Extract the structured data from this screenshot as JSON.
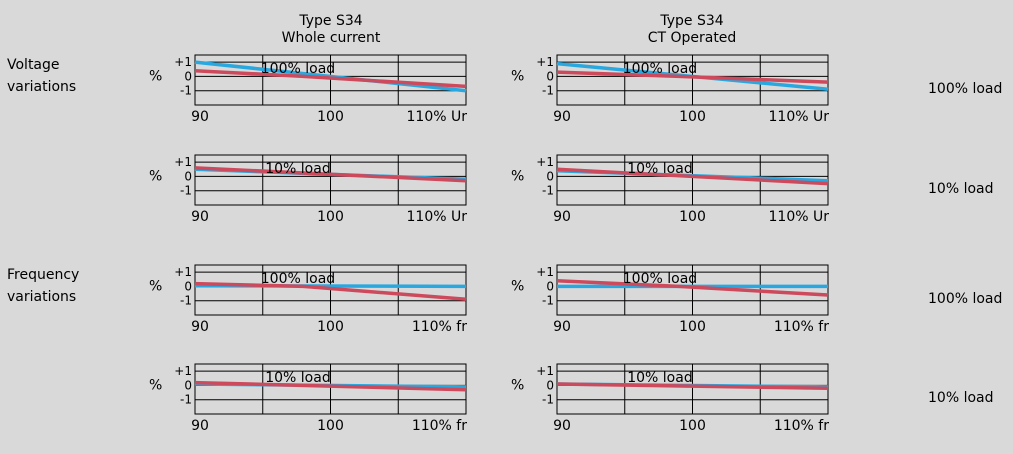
{
  "columns": [
    {
      "title_line1": "Type S34",
      "title_line2": "Whole current"
    },
    {
      "title_line1": "Type S34",
      "title_line2": "CT Operated"
    }
  ],
  "row_labels": [
    {
      "line1": "Voltage",
      "line2": "variations"
    },
    {
      "line1": "Frequency",
      "line2": "variations"
    }
  ],
  "right_labels": [
    "100% load",
    "10% load",
    "100% load",
    "10% load"
  ],
  "colors": {
    "background": "#d9d9d9",
    "cyan_series": "#29a8e0",
    "red_series": "#cc4a5c",
    "grid": "#000000"
  },
  "chart_data": [
    {
      "type": "line",
      "panel": "whole-current-voltage-100",
      "overlay_label": "100% load",
      "ylabel": "%",
      "x_ticks": [
        "90",
        "100",
        "110% Ur"
      ],
      "y_ticks": [
        "+1",
        "0",
        "-1"
      ],
      "xlim": [
        90,
        110
      ],
      "ylim": [
        -2,
        1.5
      ],
      "series": [
        {
          "color": "#29a8e0",
          "x": [
            90,
            110
          ],
          "y": [
            1.0,
            -1.0
          ]
        },
        {
          "color": "#cc4a5c",
          "x": [
            90,
            98,
            110
          ],
          "y": [
            0.4,
            0.0,
            -0.7
          ]
        }
      ]
    },
    {
      "type": "line",
      "panel": "ct-operated-voltage-100",
      "overlay_label": "100% load",
      "ylabel": "%",
      "x_ticks": [
        "90",
        "100",
        "110% Ur"
      ],
      "y_ticks": [
        "+1",
        "0",
        "-1"
      ],
      "xlim": [
        90,
        110
      ],
      "ylim": [
        -2,
        1.5
      ],
      "series": [
        {
          "color": "#29a8e0",
          "x": [
            90,
            110
          ],
          "y": [
            0.9,
            -0.9
          ]
        },
        {
          "color": "#cc4a5c",
          "x": [
            90,
            99,
            110
          ],
          "y": [
            0.3,
            0.0,
            -0.4
          ]
        }
      ]
    },
    {
      "type": "line",
      "panel": "whole-current-voltage-10",
      "overlay_label": "10% load",
      "ylabel": "%",
      "x_ticks": [
        "90",
        "100",
        "110% Ur"
      ],
      "y_ticks": [
        "+1",
        "0",
        "-1"
      ],
      "xlim": [
        90,
        110
      ],
      "ylim": [
        -2,
        1.5
      ],
      "series": [
        {
          "color": "#29a8e0",
          "x": [
            90,
            110
          ],
          "y": [
            0.5,
            -0.2
          ]
        },
        {
          "color": "#cc4a5c",
          "x": [
            90,
            110
          ],
          "y": [
            0.6,
            -0.3
          ]
        }
      ]
    },
    {
      "type": "line",
      "panel": "ct-operated-voltage-10",
      "overlay_label": "10% load",
      "ylabel": "%",
      "x_ticks": [
        "90",
        "100",
        "110% Ur"
      ],
      "y_ticks": [
        "+1",
        "0",
        "-1"
      ],
      "xlim": [
        90,
        110
      ],
      "ylim": [
        -2,
        1.5
      ],
      "series": [
        {
          "color": "#29a8e0",
          "x": [
            90,
            110
          ],
          "y": [
            0.4,
            -0.3
          ]
        },
        {
          "color": "#cc4a5c",
          "x": [
            90,
            110
          ],
          "y": [
            0.5,
            -0.5
          ]
        }
      ]
    },
    {
      "type": "line",
      "panel": "whole-current-frequency-100",
      "overlay_label": "100% load",
      "ylabel": "%",
      "x_ticks": [
        "90",
        "100",
        "110% fr"
      ],
      "y_ticks": [
        "+1",
        "0",
        "-1"
      ],
      "xlim": [
        90,
        110
      ],
      "ylim": [
        -2,
        1.5
      ],
      "series": [
        {
          "color": "#29a8e0",
          "x": [
            90,
            110
          ],
          "y": [
            0.05,
            0.0
          ]
        },
        {
          "color": "#cc4a5c",
          "x": [
            90,
            98,
            110
          ],
          "y": [
            0.2,
            0.0,
            -0.9
          ]
        }
      ]
    },
    {
      "type": "line",
      "panel": "ct-operated-frequency-100",
      "overlay_label": "100% load",
      "ylabel": "%",
      "x_ticks": [
        "90",
        "100",
        "110% fr"
      ],
      "y_ticks": [
        "+1",
        "0",
        "-1"
      ],
      "xlim": [
        90,
        110
      ],
      "ylim": [
        -2,
        1.5
      ],
      "series": [
        {
          "color": "#29a8e0",
          "x": [
            90,
            110
          ],
          "y": [
            0.0,
            0.0
          ]
        },
        {
          "color": "#cc4a5c",
          "x": [
            90,
            99,
            110
          ],
          "y": [
            0.4,
            0.0,
            -0.6
          ]
        }
      ]
    },
    {
      "type": "line",
      "panel": "whole-current-frequency-10",
      "overlay_label": "10% load",
      "ylabel": "%",
      "x_ticks": [
        "90",
        "100",
        "110% fr"
      ],
      "y_ticks": [
        "+1",
        "0",
        "-1"
      ],
      "xlim": [
        90,
        110
      ],
      "ylim": [
        -2,
        1.5
      ],
      "series": [
        {
          "color": "#29a8e0",
          "x": [
            90,
            110
          ],
          "y": [
            0.1,
            -0.1
          ]
        },
        {
          "color": "#cc4a5c",
          "x": [
            90,
            110
          ],
          "y": [
            0.2,
            -0.3
          ]
        }
      ]
    },
    {
      "type": "line",
      "panel": "ct-operated-frequency-10",
      "overlay_label": "10% load",
      "ylabel": "%",
      "x_ticks": [
        "90",
        "100",
        "110% fr"
      ],
      "y_ticks": [
        "+1",
        "0",
        "-1"
      ],
      "xlim": [
        90,
        110
      ],
      "ylim": [
        -2,
        1.5
      ],
      "series": [
        {
          "color": "#29a8e0",
          "x": [
            90,
            110
          ],
          "y": [
            0.1,
            -0.1
          ]
        },
        {
          "color": "#cc4a5c",
          "x": [
            90,
            110
          ],
          "y": [
            0.1,
            -0.2
          ]
        }
      ]
    }
  ]
}
